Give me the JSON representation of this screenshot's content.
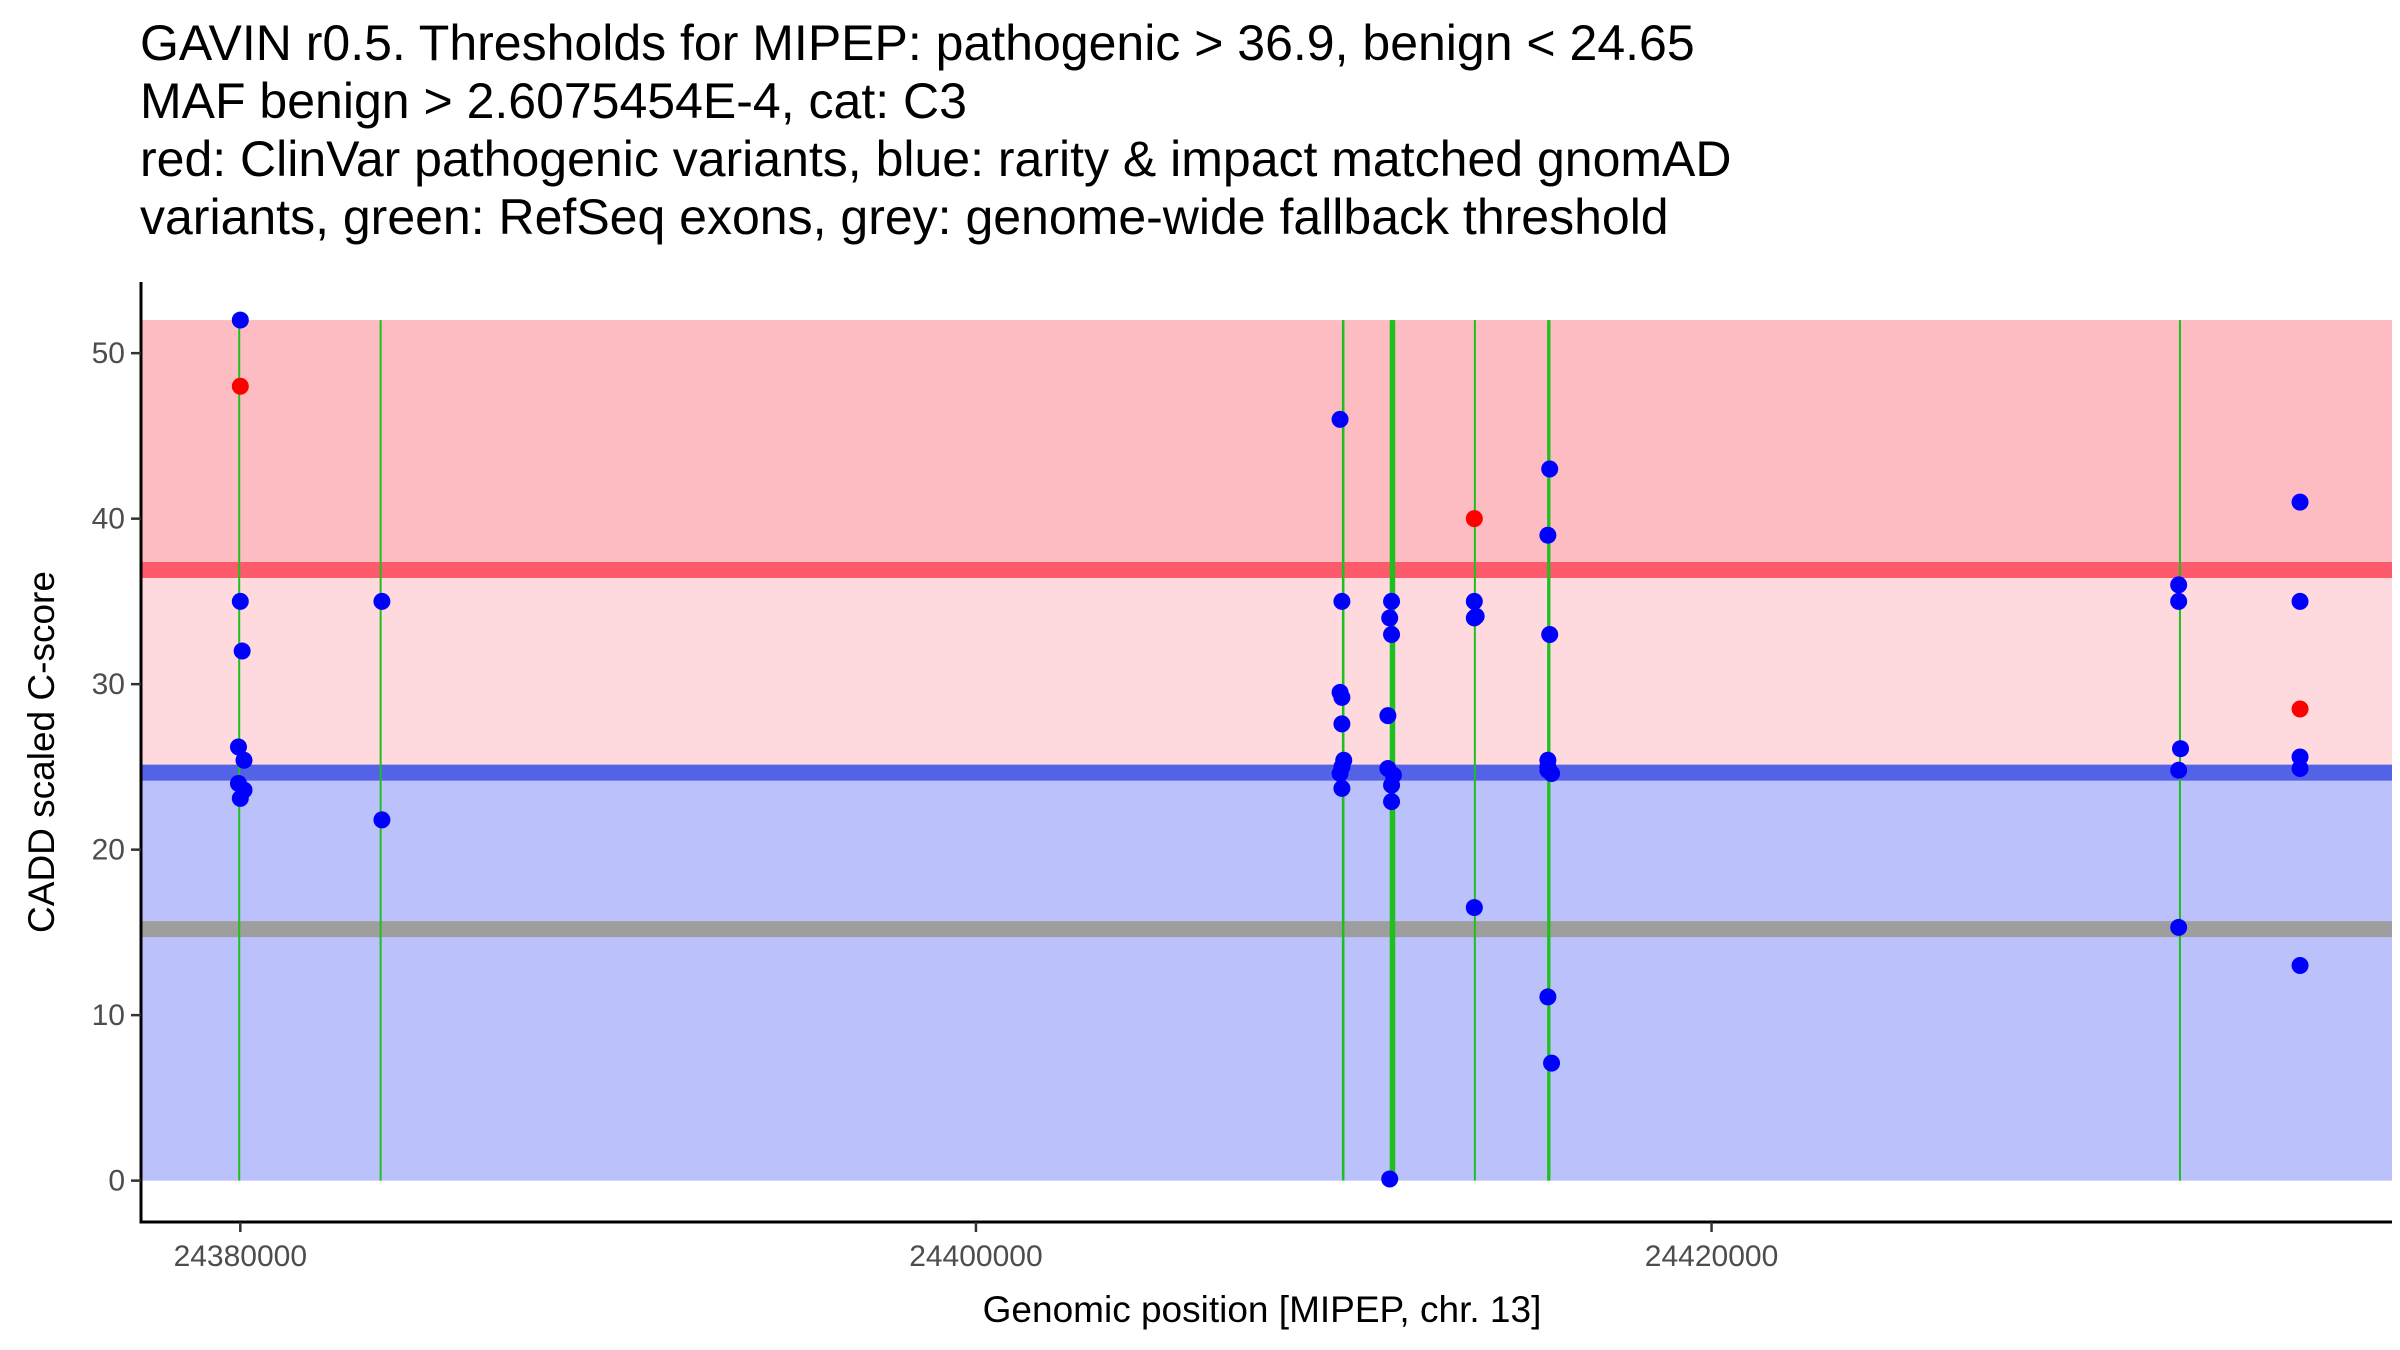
{
  "title_lines": [
    "GAVIN r0.5. Thresholds for MIPEP: pathogenic > 36.9, benign < 24.65",
    "MAF benign > 2.6075454E-4, cat: C3",
    "red: ClinVar pathogenic variants, blue: rarity & impact matched gnomAD",
    "variants, green: RefSeq exons, grey: genome-wide fallback threshold"
  ],
  "chart_data": {
    "type": "scatter",
    "title": "GAVIN r0.5. Thresholds for MIPEP: pathogenic > 36.9, benign < 24.65 MAF benign > 2.6075454E-4, cat: C3 red: ClinVar pathogenic variants, blue: rarity & impact matched gnomAD variants, green: RefSeq exons, grey: genome-wide fallback threshold",
    "xlabel": "Genomic position [MIPEP, chr. 13]",
    "ylabel": "CADD scaled C-score",
    "xlim": [
      24377300,
      24438500
    ],
    "ylim": [
      -2.5,
      54.3
    ],
    "x_ticks": [
      24380000,
      24400000,
      24420000
    ],
    "x_tick_labels": [
      "24380000",
      "24400000",
      "24420000"
    ],
    "y_ticks": [
      0,
      10,
      20,
      30,
      40,
      50
    ],
    "y_tick_labels": [
      "0",
      "10",
      "20",
      "30",
      "40",
      "50"
    ],
    "grid": false,
    "colors": {
      "pathogenic_region": "#fcbcc1",
      "middle_region": "#fed9de",
      "benign_region": "#bbc1fa",
      "pathogenic_line": "#fd5a6b",
      "benign_line": "#5462e8",
      "fallback_line": "#9e9e9e",
      "exon": "#1fbf1f",
      "pathogenic_point": "#ff0000",
      "benign_point": "#0000ff"
    },
    "regions": [
      {
        "name": "pathogenic region",
        "from": 36.9,
        "to": 52,
        "color": "#fcbcc1"
      },
      {
        "name": "middle region",
        "from": 24.65,
        "to": 36.9,
        "color": "#fed9de"
      },
      {
        "name": "benign region",
        "from": 0,
        "to": 24.65,
        "color": "#bbc1fa"
      }
    ],
    "threshold_lines": [
      {
        "name": "pathogenic threshold",
        "value": 36.9,
        "color": "#fd5a6b"
      },
      {
        "name": "benign threshold",
        "value": 24.65,
        "color": "#5462e8"
      },
      {
        "name": "genome-wide fallback threshold",
        "value": 15.2,
        "color": "#9e9e9e"
      }
    ],
    "exons": [
      {
        "start": 24379950,
        "end": 24379990
      },
      {
        "start": 24383800,
        "end": 24383830
      },
      {
        "start": 24409950,
        "end": 24410020
      },
      {
        "start": 24411250,
        "end": 24411400
      },
      {
        "start": 24413550,
        "end": 24413580
      },
      {
        "start": 24415530,
        "end": 24415620
      },
      {
        "start": 24432720,
        "end": 24432750
      }
    ],
    "series": [
      {
        "name": "ClinVar pathogenic variants",
        "color": "#ff0000",
        "points": [
          {
            "x": 24380000,
            "y": 48
          },
          {
            "x": 24413550,
            "y": 40
          },
          {
            "x": 24436000,
            "y": 28.5
          }
        ]
      },
      {
        "name": "rarity & impact matched gnomAD variants",
        "color": "#0000ff",
        "points": [
          {
            "x": 24380000,
            "y": 52
          },
          {
            "x": 24380000,
            "y": 35
          },
          {
            "x": 24380050,
            "y": 32
          },
          {
            "x": 24379950,
            "y": 26.2
          },
          {
            "x": 24380100,
            "y": 25.4
          },
          {
            "x": 24379950,
            "y": 24
          },
          {
            "x": 24380100,
            "y": 23.6
          },
          {
            "x": 24380000,
            "y": 23.1
          },
          {
            "x": 24383850,
            "y": 35
          },
          {
            "x": 24383850,
            "y": 21.8
          },
          {
            "x": 24409900,
            "y": 46
          },
          {
            "x": 24409950,
            "y": 35
          },
          {
            "x": 24409900,
            "y": 29.5
          },
          {
            "x": 24409950,
            "y": 29.2
          },
          {
            "x": 24409950,
            "y": 27.6
          },
          {
            "x": 24410000,
            "y": 25.4
          },
          {
            "x": 24409950,
            "y": 25
          },
          {
            "x": 24409900,
            "y": 24.6
          },
          {
            "x": 24409950,
            "y": 23.7
          },
          {
            "x": 24411300,
            "y": 35
          },
          {
            "x": 24411250,
            "y": 34
          },
          {
            "x": 24411300,
            "y": 33
          },
          {
            "x": 24411200,
            "y": 28.1
          },
          {
            "x": 24411200,
            "y": 24.9
          },
          {
            "x": 24411350,
            "y": 24.5
          },
          {
            "x": 24411300,
            "y": 23.9
          },
          {
            "x": 24411300,
            "y": 22.9
          },
          {
            "x": 24411250,
            "y": 0.1
          },
          {
            "x": 24413550,
            "y": 35
          },
          {
            "x": 24413600,
            "y": 34.1
          },
          {
            "x": 24413550,
            "y": 34
          },
          {
            "x": 24413550,
            "y": 16.5
          },
          {
            "x": 24415600,
            "y": 43
          },
          {
            "x": 24415550,
            "y": 39
          },
          {
            "x": 24415600,
            "y": 33
          },
          {
            "x": 24415550,
            "y": 25.4
          },
          {
            "x": 24415550,
            "y": 25
          },
          {
            "x": 24415550,
            "y": 24.8
          },
          {
            "x": 24415650,
            "y": 24.6
          },
          {
            "x": 24415550,
            "y": 11.1
          },
          {
            "x": 24415650,
            "y": 7.1
          },
          {
            "x": 24432700,
            "y": 36
          },
          {
            "x": 24432700,
            "y": 35
          },
          {
            "x": 24432750,
            "y": 26.1
          },
          {
            "x": 24432700,
            "y": 24.8
          },
          {
            "x": 24432700,
            "y": 15.3
          },
          {
            "x": 24436000,
            "y": 41
          },
          {
            "x": 24436000,
            "y": 35
          },
          {
            "x": 24436000,
            "y": 25.6
          },
          {
            "x": 24436000,
            "y": 24.9
          },
          {
            "x": 24436000,
            "y": 13
          }
        ]
      }
    ]
  }
}
